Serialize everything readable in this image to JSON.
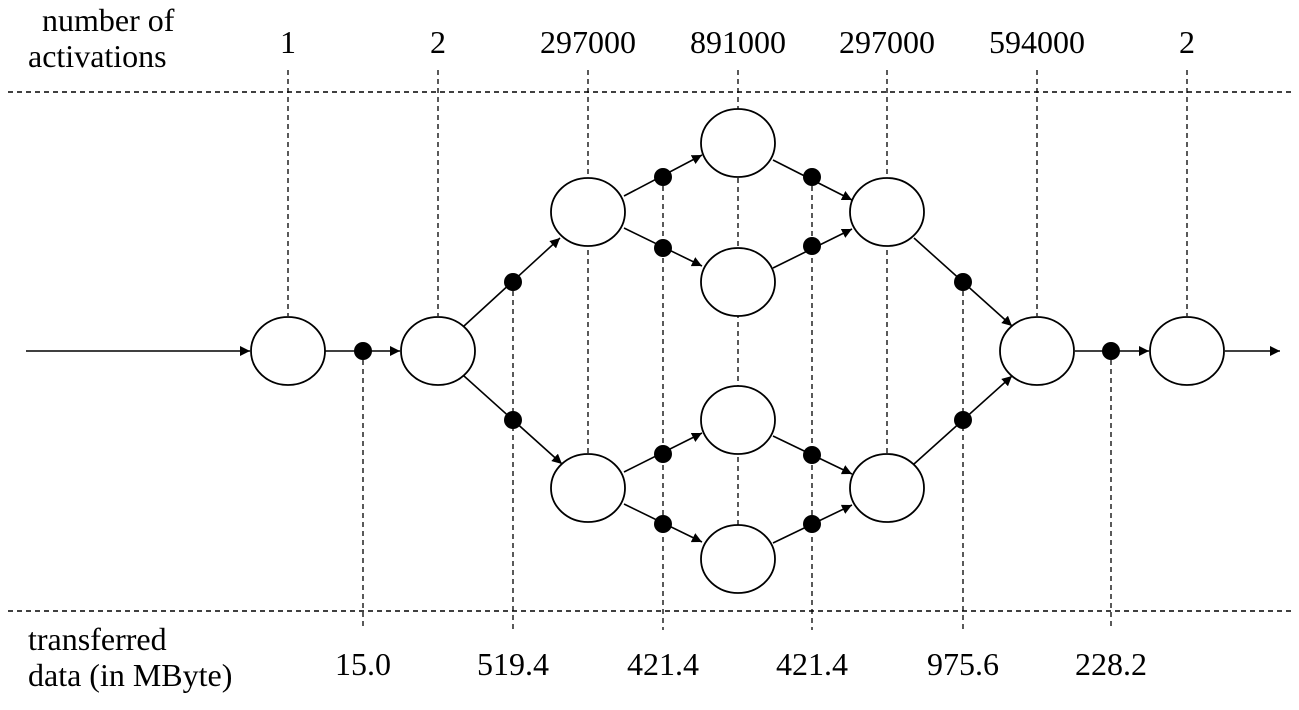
{
  "header": {
    "activations_label_line1": "number of",
    "activations_label_line2": "activations"
  },
  "footer": {
    "transferred_label_line1": "transferred",
    "transferred_label_line2": "data (in MByte)"
  },
  "activations": [
    "1",
    "2",
    "297000",
    "891000",
    "297000",
    "594000",
    "2"
  ],
  "transfers": [
    "15.0",
    "519.4",
    "421.4",
    "421.4",
    "975.6",
    "228.2"
  ],
  "colors": {
    "stroke": "#000000",
    "fill": "#ffffff"
  }
}
